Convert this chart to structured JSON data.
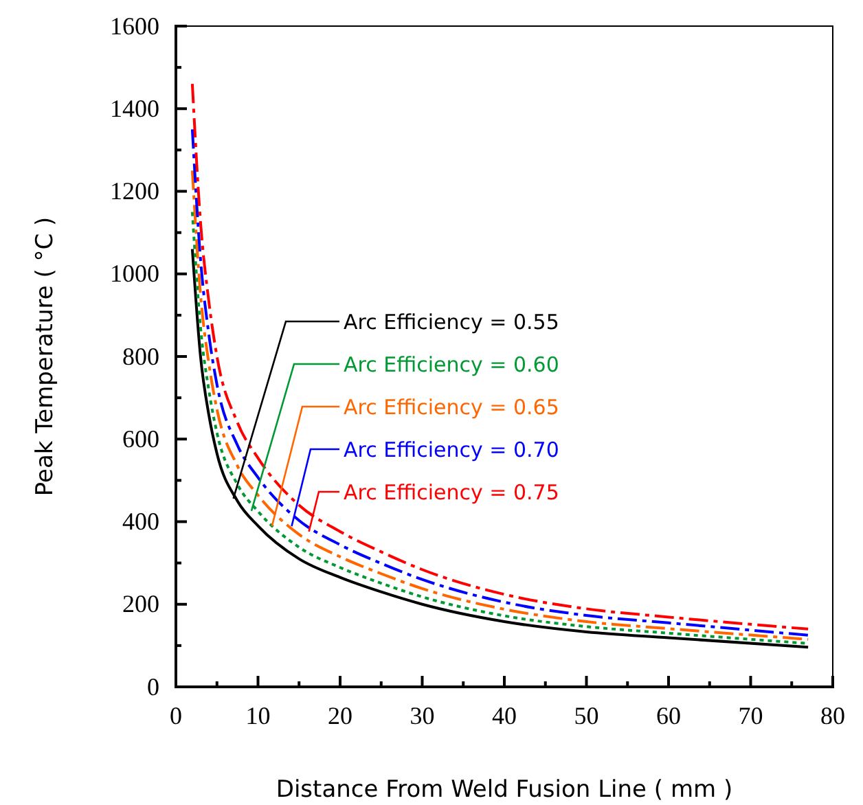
{
  "chart_data": {
    "type": "line",
    "xlabel": "Distance From Weld Fusion Line ( mm )",
    "ylabel": "Peak Temperature ( °C )",
    "xlim": [
      0,
      80
    ],
    "xticks": [
      0,
      10,
      20,
      30,
      40,
      50,
      60,
      70,
      80
    ],
    "ylim": [
      0,
      1600
    ],
    "yticks": [
      0,
      200,
      400,
      600,
      800,
      1000,
      1200,
      1400,
      1600
    ],
    "x": [
      2,
      3,
      4,
      5,
      7.5,
      10,
      15,
      20,
      25,
      30,
      40,
      50,
      60,
      77
    ],
    "series": [
      {
        "color": "#000000",
        "line_style": "solid",
        "values": [
          1060,
          800,
          660,
          565,
          450,
          390,
          310,
          265,
          230,
          200,
          158,
          133,
          119,
          96
        ]
      },
      {
        "color": "#009933",
        "line_style": "dotted",
        "values": [
          1150,
          870,
          720,
          615,
          490,
          425,
          338,
          289,
          251,
          218,
          172,
          146,
          130,
          105
        ]
      },
      {
        "color": "#ff6600",
        "line_style": "dashed",
        "values": [
          1250,
          950,
          785,
          672,
          535,
          464,
          369,
          315,
          274,
          238,
          188,
          158,
          141,
          115
        ]
      },
      {
        "color": "#0000ff",
        "line_style": "dashed",
        "values": [
          1350,
          1035,
          855,
          732,
          585,
          507,
          403,
          344,
          299,
          260,
          205,
          173,
          155,
          125
        ]
      },
      {
        "color": "#ff0000",
        "line_style": "dashed",
        "values": [
          1460,
          1125,
          935,
          800,
          640,
          554,
          440,
          376,
          327,
          284,
          224,
          189,
          169,
          140
        ]
      }
    ],
    "annotations": [
      {
        "text": "Arc Efficiency = 0.55",
        "x": 7,
        "y": 456
      },
      {
        "text": "Arc Efficiency = 0.60",
        "x": 9.2,
        "y": 426
      },
      {
        "text": "Arc Efficiency = 0.65",
        "x": 11.7,
        "y": 389
      },
      {
        "text": "Arc Efficiency = 0.70",
        "x": 14.1,
        "y": 389
      },
      {
        "text": "Arc Efficiency = 0.75",
        "x": 16.2,
        "y": 376
      }
    ]
  }
}
